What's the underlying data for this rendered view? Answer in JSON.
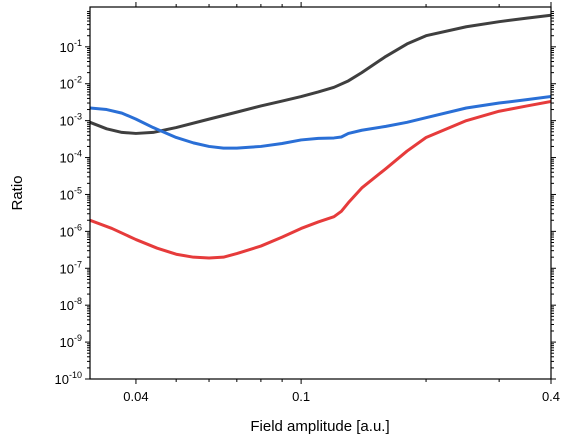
{
  "chart_data": {
    "type": "line",
    "title": "",
    "xlabel": "Field amplitude [a.u.]",
    "ylabel": "Ratio",
    "x_scale": "log",
    "y_scale": "log",
    "xlim": [
      0.031,
      0.4
    ],
    "ylim": [
      1e-10,
      1.2
    ],
    "grid": false,
    "legend": "none",
    "x_ticks": [
      {
        "value": 0.04,
        "label": "0.04"
      },
      {
        "value": 0.1,
        "label": "0.1"
      },
      {
        "value": 0.4,
        "label": "0.4"
      }
    ],
    "y_ticks": [
      {
        "value": 1e-10,
        "base": "10",
        "exp": "-10"
      },
      {
        "value": 1e-09,
        "base": "10",
        "exp": "-9"
      },
      {
        "value": 1e-08,
        "base": "10",
        "exp": "-8"
      },
      {
        "value": 1e-07,
        "base": "10",
        "exp": "-7"
      },
      {
        "value": 1e-06,
        "base": "10",
        "exp": "-6"
      },
      {
        "value": 1e-05,
        "base": "10",
        "exp": "-5"
      },
      {
        "value": 0.0001,
        "base": "10",
        "exp": "-4"
      },
      {
        "value": 0.001,
        "base": "10",
        "exp": "-3"
      },
      {
        "value": 0.01,
        "base": "10",
        "exp": "-2"
      },
      {
        "value": 0.1,
        "base": "10",
        "exp": "-1"
      }
    ],
    "series": [
      {
        "color": "#3f3f3f",
        "x": [
          0.031,
          0.034,
          0.037,
          0.04,
          0.044,
          0.05,
          0.06,
          0.07,
          0.08,
          0.09,
          0.1,
          0.11,
          0.12,
          0.13,
          0.14,
          0.16,
          0.18,
          0.2,
          0.25,
          0.3,
          0.35,
          0.4
        ],
        "y": [
          0.0009,
          0.0006,
          0.00048,
          0.00045,
          0.00048,
          0.00065,
          0.0011,
          0.0017,
          0.0025,
          0.0034,
          0.0045,
          0.006,
          0.008,
          0.012,
          0.02,
          0.055,
          0.12,
          0.2,
          0.35,
          0.48,
          0.6,
          0.72
        ]
      },
      {
        "color": "#2a6fd6",
        "x": [
          0.031,
          0.034,
          0.037,
          0.04,
          0.044,
          0.05,
          0.055,
          0.06,
          0.065,
          0.07,
          0.075,
          0.08,
          0.09,
          0.1,
          0.11,
          0.12,
          0.125,
          0.13,
          0.14,
          0.16,
          0.18,
          0.2,
          0.25,
          0.3,
          0.35,
          0.4
        ],
        "y": [
          0.0022,
          0.002,
          0.0016,
          0.0011,
          0.00065,
          0.00035,
          0.00025,
          0.0002,
          0.00018,
          0.00018,
          0.00019,
          0.0002,
          0.00024,
          0.0003,
          0.00033,
          0.00034,
          0.00036,
          0.00045,
          0.00055,
          0.0007,
          0.0009,
          0.0012,
          0.0022,
          0.003,
          0.0037,
          0.0045
        ]
      },
      {
        "color": "#e63b3b",
        "x": [
          0.031,
          0.035,
          0.04,
          0.045,
          0.05,
          0.055,
          0.06,
          0.065,
          0.07,
          0.08,
          0.09,
          0.1,
          0.11,
          0.12,
          0.125,
          0.13,
          0.14,
          0.16,
          0.18,
          0.2,
          0.25,
          0.3,
          0.35,
          0.4
        ],
        "y": [
          2e-06,
          1.2e-06,
          6e-07,
          3.5e-07,
          2.4e-07,
          2e-07,
          1.9e-07,
          2e-07,
          2.5e-07,
          4e-07,
          7e-07,
          1.2e-06,
          1.8e-06,
          2.5e-06,
          3.5e-06,
          6e-06,
          1.5e-05,
          5e-05,
          0.00015,
          0.00035,
          0.001,
          0.0018,
          0.0025,
          0.0033
        ]
      }
    ]
  }
}
